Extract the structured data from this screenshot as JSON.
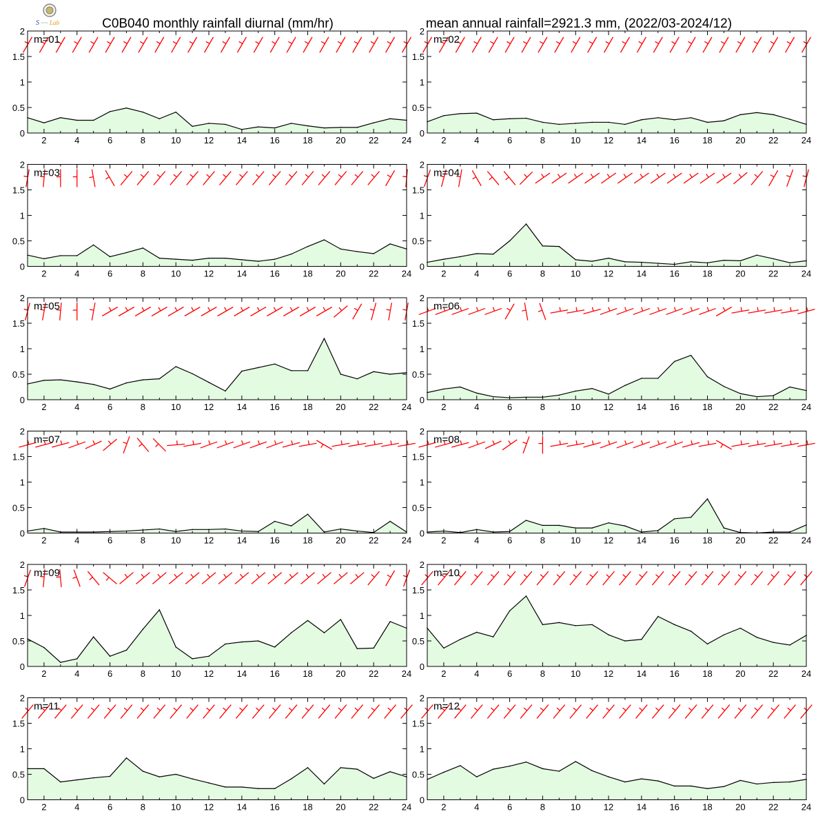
{
  "header": {
    "title_left": "C0B040 monthly rainfall diurnal (mm/hr)",
    "title_right": "mean annual rainfall=2921.3 mm, (2022/03-2024/12)"
  },
  "logo": {
    "name": "lab-logo",
    "text": "Lab"
  },
  "colors": {
    "fill": "#e3fbe1",
    "line": "#000000",
    "barb": "#ff0000",
    "frame": "#000000"
  },
  "chart_data": [
    {
      "type": "area",
      "label": "m=01",
      "x": [
        1,
        2,
        3,
        4,
        5,
        6,
        7,
        8,
        9,
        10,
        11,
        12,
        13,
        14,
        15,
        16,
        17,
        18,
        19,
        20,
        21,
        22,
        23,
        24
      ],
      "values": [
        0.3,
        0.2,
        0.3,
        0.25,
        0.25,
        0.42,
        0.49,
        0.41,
        0.28,
        0.41,
        0.13,
        0.19,
        0.17,
        0.07,
        0.12,
        0.1,
        0.19,
        0.14,
        0.1,
        0.11,
        0.11,
        0.2,
        0.28,
        0.25
      ],
      "wind_dir_deg": [
        30,
        30,
        30,
        30,
        30,
        30,
        30,
        30,
        30,
        30,
        30,
        30,
        30,
        30,
        30,
        30,
        30,
        30,
        30,
        30,
        30,
        30,
        30,
        30
      ],
      "xticks": [
        2,
        4,
        6,
        8,
        10,
        12,
        14,
        16,
        18,
        20,
        22,
        24
      ],
      "ylim": [
        0,
        2
      ],
      "yticks": [
        0,
        0.5,
        1,
        1.5,
        2
      ]
    },
    {
      "type": "area",
      "label": "m=02",
      "x": [
        1,
        2,
        3,
        4,
        5,
        6,
        7,
        8,
        9,
        10,
        11,
        12,
        13,
        14,
        15,
        16,
        17,
        18,
        19,
        20,
        21,
        22,
        23,
        24
      ],
      "values": [
        0.22,
        0.34,
        0.38,
        0.39,
        0.26,
        0.28,
        0.29,
        0.21,
        0.17,
        0.19,
        0.21,
        0.21,
        0.17,
        0.26,
        0.3,
        0.26,
        0.3,
        0.21,
        0.24,
        0.36,
        0.4,
        0.36,
        0.27,
        0.17
      ],
      "wind_dir_deg": [
        30,
        30,
        30,
        30,
        30,
        30,
        30,
        30,
        30,
        30,
        30,
        30,
        30,
        30,
        30,
        30,
        30,
        30,
        30,
        30,
        30,
        30,
        30,
        30
      ],
      "xticks": [
        2,
        4,
        6,
        8,
        10,
        12,
        14,
        16,
        18,
        20,
        22,
        24
      ],
      "ylim": [
        0,
        2
      ],
      "yticks": [
        0,
        0.5,
        1,
        1.5,
        2
      ]
    },
    {
      "type": "area",
      "label": "m=03",
      "x": [
        1,
        2,
        3,
        4,
        5,
        6,
        7,
        8,
        9,
        10,
        11,
        12,
        13,
        14,
        15,
        16,
        17,
        18,
        19,
        20,
        21,
        22,
        23,
        24
      ],
      "values": [
        0.22,
        0.15,
        0.21,
        0.21,
        0.42,
        0.19,
        0.27,
        0.36,
        0.16,
        0.14,
        0.12,
        0.16,
        0.16,
        0.13,
        0.1,
        0.14,
        0.24,
        0.39,
        0.52,
        0.34,
        0.29,
        0.25,
        0.44,
        0.34
      ],
      "wind_dir_deg": [
        10,
        5,
        0,
        0,
        -10,
        -30,
        40,
        40,
        40,
        40,
        40,
        40,
        40,
        40,
        40,
        40,
        40,
        40,
        40,
        40,
        40,
        40,
        30,
        5
      ],
      "xticks": [
        2,
        4,
        6,
        8,
        10,
        12,
        14,
        16,
        18,
        20,
        22,
        24
      ],
      "ylim": [
        0,
        2
      ],
      "yticks": [
        0,
        0.5,
        1,
        1.5,
        2
      ]
    },
    {
      "type": "area",
      "label": "m=04",
      "x": [
        1,
        2,
        3,
        4,
        5,
        6,
        7,
        8,
        9,
        10,
        11,
        12,
        13,
        14,
        15,
        16,
        17,
        18,
        19,
        20,
        21,
        22,
        23,
        24
      ],
      "values": [
        0.08,
        0.14,
        0.19,
        0.25,
        0.24,
        0.5,
        0.83,
        0.4,
        0.39,
        0.13,
        0.1,
        0.16,
        0.09,
        0.08,
        0.06,
        0.04,
        0.09,
        0.07,
        0.12,
        0.11,
        0.22,
        0.15,
        0.07,
        0.11
      ],
      "wind_dir_deg": [
        20,
        15,
        10,
        -30,
        -40,
        -40,
        45,
        55,
        55,
        55,
        55,
        55,
        55,
        55,
        55,
        55,
        55,
        55,
        55,
        50,
        40,
        30,
        20,
        15
      ],
      "xticks": [
        2,
        4,
        6,
        8,
        10,
        12,
        14,
        16,
        18,
        20,
        22,
        24
      ],
      "ylim": [
        0,
        2
      ],
      "yticks": [
        0,
        0.5,
        1,
        1.5,
        2
      ]
    },
    {
      "type": "area",
      "label": "m=05",
      "x": [
        1,
        2,
        3,
        4,
        5,
        6,
        7,
        8,
        9,
        10,
        11,
        12,
        13,
        14,
        15,
        16,
        17,
        18,
        19,
        20,
        21,
        22,
        23,
        24
      ],
      "values": [
        0.31,
        0.38,
        0.39,
        0.35,
        0.3,
        0.21,
        0.33,
        0.39,
        0.41,
        0.65,
        0.51,
        0.34,
        0.17,
        0.56,
        0.63,
        0.7,
        0.57,
        0.57,
        1.2,
        0.5,
        0.41,
        0.55,
        0.5,
        0.53
      ],
      "wind_dir_deg": [
        15,
        10,
        5,
        0,
        10,
        60,
        60,
        60,
        60,
        60,
        60,
        60,
        60,
        60,
        60,
        60,
        60,
        60,
        60,
        50,
        30,
        15,
        10,
        10
      ],
      "xticks": [
        2,
        4,
        6,
        8,
        10,
        12,
        14,
        16,
        18,
        20,
        22,
        24
      ],
      "ylim": [
        0,
        2
      ],
      "yticks": [
        0,
        0.5,
        1,
        1.5,
        2
      ]
    },
    {
      "type": "area",
      "label": "m=06",
      "x": [
        1,
        2,
        3,
        4,
        5,
        6,
        7,
        8,
        9,
        10,
        11,
        12,
        13,
        14,
        15,
        16,
        17,
        18,
        19,
        20,
        21,
        22,
        23,
        24
      ],
      "values": [
        0.14,
        0.21,
        0.25,
        0.13,
        0.06,
        0.04,
        0.05,
        0.05,
        0.09,
        0.17,
        0.22,
        0.11,
        0.28,
        0.42,
        0.42,
        0.75,
        0.87,
        0.45,
        0.26,
        0.12,
        0.06,
        0.08,
        0.25,
        0.18
      ],
      "wind_dir_deg": [
        70,
        70,
        70,
        70,
        70,
        30,
        -10,
        -20,
        80,
        80,
        75,
        70,
        70,
        70,
        70,
        70,
        70,
        70,
        60,
        80,
        80,
        80,
        80,
        75
      ],
      "xticks": [
        2,
        4,
        6,
        8,
        10,
        12,
        14,
        16,
        18,
        20,
        22,
        24
      ],
      "ylim": [
        0,
        2
      ],
      "yticks": [
        0,
        0.5,
        1,
        1.5,
        2
      ]
    },
    {
      "type": "area",
      "label": "m=07",
      "x": [
        1,
        2,
        3,
        4,
        5,
        6,
        7,
        8,
        9,
        10,
        11,
        12,
        13,
        14,
        15,
        16,
        17,
        18,
        19,
        20,
        21,
        22,
        23,
        24
      ],
      "values": [
        0.04,
        0.09,
        0.02,
        0.02,
        0.02,
        0.03,
        0.04,
        0.06,
        0.08,
        0.03,
        0.07,
        0.07,
        0.08,
        0.04,
        0.03,
        0.23,
        0.14,
        0.37,
        0.02,
        0.08,
        0.04,
        0.01,
        0.23,
        0.02
      ],
      "wind_dir_deg": [
        75,
        75,
        75,
        70,
        65,
        50,
        20,
        -40,
        -45,
        85,
        80,
        70,
        70,
        70,
        70,
        70,
        75,
        80,
        -60,
        80,
        80,
        80,
        80,
        80
      ],
      "xticks": [
        2,
        4,
        6,
        8,
        10,
        12,
        14,
        16,
        18,
        20,
        22,
        24
      ],
      "ylim": [
        0,
        2
      ],
      "yticks": [
        0,
        0.5,
        1,
        1.5,
        2
      ]
    },
    {
      "type": "area",
      "label": "m=08",
      "x": [
        1,
        2,
        3,
        4,
        5,
        6,
        7,
        8,
        9,
        10,
        11,
        12,
        13,
        14,
        15,
        16,
        17,
        18,
        19,
        20,
        21,
        22,
        23,
        24
      ],
      "values": [
        0.02,
        0.04,
        0.01,
        0.07,
        0.02,
        0.03,
        0.25,
        0.15,
        0.15,
        0.1,
        0.1,
        0.2,
        0.14,
        0.02,
        0.05,
        0.28,
        0.31,
        0.67,
        0.1,
        0.01,
        0.0,
        0.02,
        0.02,
        0.16
      ],
      "wind_dir_deg": [
        75,
        75,
        75,
        70,
        65,
        55,
        20,
        0,
        80,
        80,
        75,
        70,
        70,
        70,
        70,
        70,
        75,
        80,
        -60,
        80,
        80,
        80,
        80,
        80
      ],
      "xticks": [
        2,
        4,
        6,
        8,
        10,
        12,
        14,
        16,
        18,
        20,
        22,
        24
      ],
      "ylim": [
        0,
        2
      ],
      "yticks": [
        0,
        0.5,
        1,
        1.5,
        2
      ]
    },
    {
      "type": "area",
      "label": "m=09",
      "x": [
        1,
        2,
        3,
        4,
        5,
        6,
        7,
        8,
        9,
        10,
        11,
        12,
        13,
        14,
        15,
        16,
        17,
        18,
        19,
        20,
        21,
        22,
        23,
        24
      ],
      "values": [
        0.54,
        0.37,
        0.08,
        0.15,
        0.58,
        0.2,
        0.32,
        0.73,
        1.11,
        0.38,
        0.15,
        0.2,
        0.44,
        0.48,
        0.5,
        0.38,
        0.66,
        0.9,
        0.66,
        0.92,
        0.35,
        0.36,
        0.88,
        0.75
      ],
      "wind_dir_deg": [
        20,
        5,
        -5,
        -20,
        -40,
        -50,
        50,
        50,
        50,
        50,
        50,
        50,
        50,
        50,
        50,
        50,
        50,
        50,
        50,
        50,
        50,
        40,
        30,
        20
      ],
      "xticks": [
        2,
        4,
        6,
        8,
        10,
        12,
        14,
        16,
        18,
        20,
        22,
        24
      ],
      "ylim": [
        0,
        2
      ],
      "yticks": [
        0,
        0.5,
        1,
        1.5,
        2
      ]
    },
    {
      "type": "area",
      "label": "m=10",
      "x": [
        1,
        2,
        3,
        4,
        5,
        6,
        7,
        8,
        9,
        10,
        11,
        12,
        13,
        14,
        15,
        16,
        17,
        18,
        19,
        20,
        21,
        22,
        23,
        24
      ],
      "values": [
        0.75,
        0.36,
        0.53,
        0.67,
        0.58,
        1.09,
        1.38,
        0.82,
        0.86,
        0.8,
        0.82,
        0.62,
        0.5,
        0.53,
        0.98,
        0.82,
        0.69,
        0.44,
        0.62,
        0.75,
        0.57,
        0.47,
        0.42,
        0.61
      ],
      "wind_dir_deg": [
        40,
        40,
        40,
        40,
        40,
        40,
        40,
        40,
        40,
        40,
        40,
        40,
        40,
        40,
        40,
        40,
        40,
        40,
        40,
        40,
        40,
        40,
        40,
        40
      ],
      "xticks": [
        2,
        4,
        6,
        8,
        10,
        12,
        14,
        16,
        18,
        20,
        22,
        24
      ],
      "ylim": [
        0,
        2
      ],
      "yticks": [
        0,
        0.5,
        1,
        1.5,
        2
      ]
    },
    {
      "type": "area",
      "label": "m=11",
      "x": [
        1,
        2,
        3,
        4,
        5,
        6,
        7,
        8,
        9,
        10,
        11,
        12,
        13,
        14,
        15,
        16,
        17,
        18,
        19,
        20,
        21,
        22,
        23,
        24
      ],
      "values": [
        0.61,
        0.61,
        0.35,
        0.39,
        0.43,
        0.46,
        0.82,
        0.56,
        0.45,
        0.5,
        0.41,
        0.33,
        0.25,
        0.25,
        0.22,
        0.22,
        0.41,
        0.63,
        0.31,
        0.63,
        0.6,
        0.42,
        0.55,
        0.45
      ],
      "wind_dir_deg": [
        40,
        40,
        40,
        40,
        40,
        40,
        40,
        40,
        40,
        40,
        40,
        40,
        40,
        40,
        40,
        40,
        40,
        40,
        40,
        40,
        40,
        40,
        40,
        40
      ],
      "xticks": [
        2,
        4,
        6,
        8,
        10,
        12,
        14,
        16,
        18,
        20,
        22,
        24
      ],
      "ylim": [
        0,
        2
      ],
      "yticks": [
        0,
        0.5,
        1,
        1.5,
        2
      ]
    },
    {
      "type": "area",
      "label": "m=12",
      "x": [
        1,
        2,
        3,
        4,
        5,
        6,
        7,
        8,
        9,
        10,
        11,
        12,
        13,
        14,
        15,
        16,
        17,
        18,
        19,
        20,
        21,
        22,
        23,
        24
      ],
      "values": [
        0.4,
        0.54,
        0.67,
        0.45,
        0.6,
        0.66,
        0.74,
        0.61,
        0.56,
        0.75,
        0.57,
        0.45,
        0.35,
        0.41,
        0.37,
        0.27,
        0.27,
        0.22,
        0.26,
        0.38,
        0.31,
        0.34,
        0.35,
        0.4
      ],
      "wind_dir_deg": [
        40,
        40,
        40,
        40,
        40,
        40,
        40,
        40,
        40,
        40,
        40,
        40,
        40,
        40,
        40,
        40,
        40,
        40,
        40,
        40,
        40,
        40,
        40,
        40
      ],
      "xticks": [
        2,
        4,
        6,
        8,
        10,
        12,
        14,
        16,
        18,
        20,
        22,
        24
      ],
      "ylim": [
        0,
        2
      ],
      "yticks": [
        0,
        0.5,
        1,
        1.5,
        2
      ]
    }
  ]
}
